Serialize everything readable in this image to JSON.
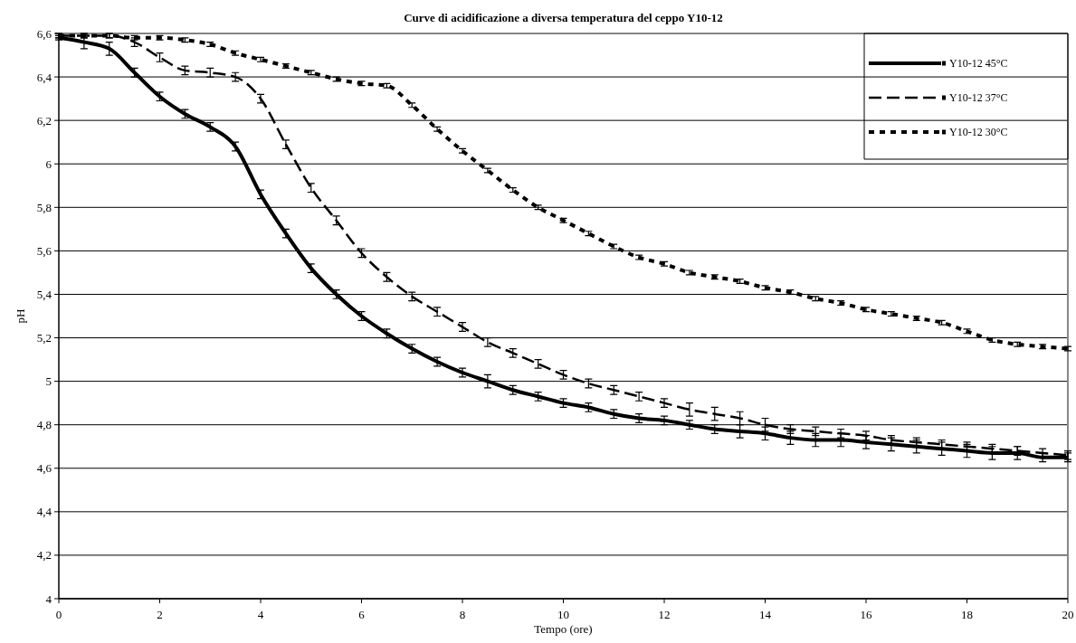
{
  "chart_data": {
    "type": "line",
    "title": "Curve di acidificazione a diversa temperatura del ceppo Y10-12",
    "xlabel": "Tempo (ore)",
    "ylabel": "pH",
    "x": [
      0,
      0.5,
      1,
      1.5,
      2,
      2.5,
      3,
      3.5,
      4,
      4.5,
      5,
      5.5,
      6,
      6.5,
      7,
      7.5,
      8,
      8.5,
      9,
      9.5,
      10,
      10.5,
      11,
      11.5,
      12,
      12.5,
      13,
      13.5,
      14,
      14.5,
      15,
      15.5,
      16,
      16.5,
      17,
      17.5,
      18,
      18.5,
      19,
      19.5,
      20
    ],
    "series": [
      {
        "name": "Y10-12 45°C",
        "color": "#000000",
        "line_style": "solid",
        "values": [
          6.58,
          6.56,
          6.53,
          6.42,
          6.31,
          6.23,
          6.17,
          6.08,
          5.86,
          5.68,
          5.52,
          5.4,
          5.3,
          5.22,
          5.15,
          5.09,
          5.04,
          5.0,
          4.96,
          4.93,
          4.9,
          4.88,
          4.85,
          4.83,
          4.82,
          4.8,
          4.78,
          4.77,
          4.76,
          4.74,
          4.73,
          4.73,
          4.72,
          4.71,
          4.7,
          4.69,
          4.68,
          4.67,
          4.67,
          4.65,
          4.65
        ],
        "errors": [
          0.01,
          0.03,
          0.03,
          0.02,
          0.02,
          0.02,
          0.02,
          0.02,
          0.02,
          0.02,
          0.02,
          0.02,
          0.02,
          0.02,
          0.02,
          0.02,
          0.02,
          0.03,
          0.02,
          0.02,
          0.02,
          0.02,
          0.02,
          0.02,
          0.02,
          0.02,
          0.02,
          0.03,
          0.03,
          0.03,
          0.03,
          0.03,
          0.03,
          0.03,
          0.03,
          0.03,
          0.03,
          0.03,
          0.03,
          0.02,
          0.02
        ]
      },
      {
        "name": "Y10-12 37°C",
        "color": "#000000",
        "line_style": "dashed",
        "values": [
          6.59,
          6.59,
          6.59,
          6.56,
          6.49,
          6.43,
          6.42,
          6.4,
          6.3,
          6.09,
          5.89,
          5.74,
          5.59,
          5.48,
          5.39,
          5.32,
          5.25,
          5.18,
          5.13,
          5.08,
          5.03,
          4.99,
          4.96,
          4.93,
          4.9,
          4.87,
          4.85,
          4.83,
          4.8,
          4.78,
          4.77,
          4.76,
          4.75,
          4.73,
          4.72,
          4.71,
          4.7,
          4.69,
          4.68,
          4.67,
          4.66
        ],
        "errors": [
          0.01,
          0.01,
          0.01,
          0.02,
          0.02,
          0.02,
          0.02,
          0.02,
          0.02,
          0.02,
          0.02,
          0.02,
          0.02,
          0.02,
          0.02,
          0.02,
          0.02,
          0.02,
          0.02,
          0.02,
          0.02,
          0.02,
          0.02,
          0.02,
          0.02,
          0.03,
          0.03,
          0.03,
          0.03,
          0.02,
          0.02,
          0.02,
          0.02,
          0.02,
          0.02,
          0.02,
          0.02,
          0.02,
          0.02,
          0.02,
          0.02
        ]
      },
      {
        "name": "Y10-12 30°C",
        "color": "#000000",
        "line_style": "dotted",
        "values": [
          6.59,
          6.59,
          6.59,
          6.58,
          6.58,
          6.57,
          6.55,
          6.51,
          6.48,
          6.45,
          6.42,
          6.39,
          6.37,
          6.36,
          6.27,
          6.16,
          6.06,
          5.97,
          5.88,
          5.8,
          5.74,
          5.68,
          5.62,
          5.57,
          5.54,
          5.5,
          5.48,
          5.46,
          5.43,
          5.41,
          5.38,
          5.36,
          5.33,
          5.31,
          5.29,
          5.27,
          5.23,
          5.19,
          5.17,
          5.16,
          5.15
        ],
        "errors": [
          0.01,
          0.01,
          0.01,
          0.01,
          0.01,
          0.01,
          0.01,
          0.01,
          0.01,
          0.01,
          0.01,
          0.01,
          0.01,
          0.01,
          0.01,
          0.01,
          0.01,
          0.01,
          0.01,
          0.01,
          0.01,
          0.01,
          0.01,
          0.01,
          0.01,
          0.01,
          0.01,
          0.01,
          0.01,
          0.01,
          0.01,
          0.01,
          0.01,
          0.01,
          0.01,
          0.01,
          0.01,
          0.01,
          0.01,
          0.01,
          0.01
        ]
      }
    ],
    "xlim": [
      0,
      20
    ],
    "xticks": [
      0,
      2,
      4,
      6,
      8,
      10,
      12,
      14,
      16,
      18,
      20
    ],
    "ylim": [
      4,
      6.6
    ],
    "yticks": [
      4,
      {
        "value": 4.2,
        "label": "4,2"
      },
      {
        "value": 4.4,
        "label": "4,4"
      },
      {
        "value": 4.6,
        "label": "4,6"
      },
      {
        "value": 4.8,
        "label": "4,8"
      },
      5,
      {
        "value": 5.2,
        "label": "5,2"
      },
      {
        "value": 5.4,
        "label": "5,4"
      },
      {
        "value": 5.6,
        "label": "5,6"
      },
      {
        "value": 5.8,
        "label": "5,8"
      },
      6,
      {
        "value": 6.2,
        "label": "6,2"
      },
      {
        "value": 6.4,
        "label": "6,4"
      },
      {
        "value": 6.6,
        "label": "6,6"
      }
    ],
    "grid": "y",
    "legend": "top right"
  }
}
